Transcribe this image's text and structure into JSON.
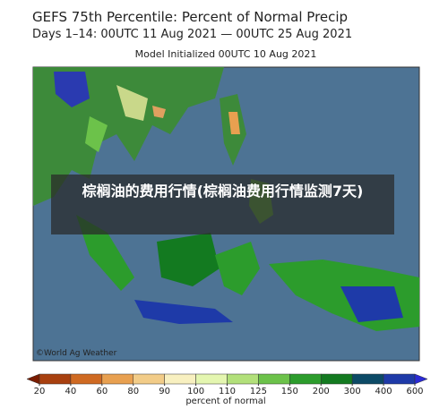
{
  "header": {
    "title": "GEFS 75th Percentile: Percent of Normal Precip",
    "period": "Days 1–14: 00UTC 11 Aug 2021 — 00UTC 25 Aug 2021",
    "model": "Model Initialized 00UTC 10 Aug 2021"
  },
  "overlay": {
    "caption": "棕榈油的费用行情(棕榈油费用行情监测7天)"
  },
  "map": {
    "credit": "©World Ag Weather"
  },
  "colorbar": {
    "label": "percent of normal",
    "ticks": [
      20,
      40,
      60,
      80,
      90,
      100,
      110,
      125,
      150,
      200,
      300,
      400,
      600
    ],
    "colors": [
      "#7a1c00",
      "#a8400f",
      "#cf6a22",
      "#e8a050",
      "#f2cc88",
      "#f8f0c0",
      "#e4f6b0",
      "#b2e07a",
      "#6cc24a",
      "#2c9c2c",
      "#137a20",
      "#0c4a66",
      "#1e3aa8",
      "#2a2ad6"
    ]
  }
}
